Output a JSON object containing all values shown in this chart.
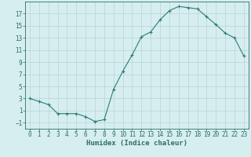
{
  "x": [
    0,
    1,
    2,
    3,
    4,
    5,
    6,
    7,
    8,
    9,
    10,
    11,
    12,
    13,
    14,
    15,
    16,
    17,
    18,
    19,
    20,
    21,
    22,
    23
  ],
  "y": [
    3,
    2.5,
    2,
    0.5,
    0.5,
    0.5,
    0.0,
    -0.8,
    -0.5,
    4.5,
    7.5,
    10.2,
    13.2,
    14.0,
    16.0,
    17.5,
    18.2,
    18.0,
    17.8,
    16.5,
    15.2,
    13.8,
    13.0,
    10.0
  ],
  "line_color": "#2e7d6e",
  "marker": "+",
  "marker_size": 3,
  "bg_color": "#d6eef0",
  "grid_color": "#b8d4d6",
  "xlabel": "Humidex (Indice chaleur)",
  "xlim": [
    -0.5,
    23.5
  ],
  "ylim": [
    -2,
    19
  ],
  "xticks": [
    0,
    1,
    2,
    3,
    4,
    5,
    6,
    7,
    8,
    9,
    10,
    11,
    12,
    13,
    14,
    15,
    16,
    17,
    18,
    19,
    20,
    21,
    22,
    23
  ],
  "yticks": [
    -1,
    1,
    3,
    5,
    7,
    9,
    11,
    13,
    15,
    17
  ],
  "tick_color": "#2e6e62",
  "label_fontsize": 6.5,
  "tick_fontsize": 5.5
}
